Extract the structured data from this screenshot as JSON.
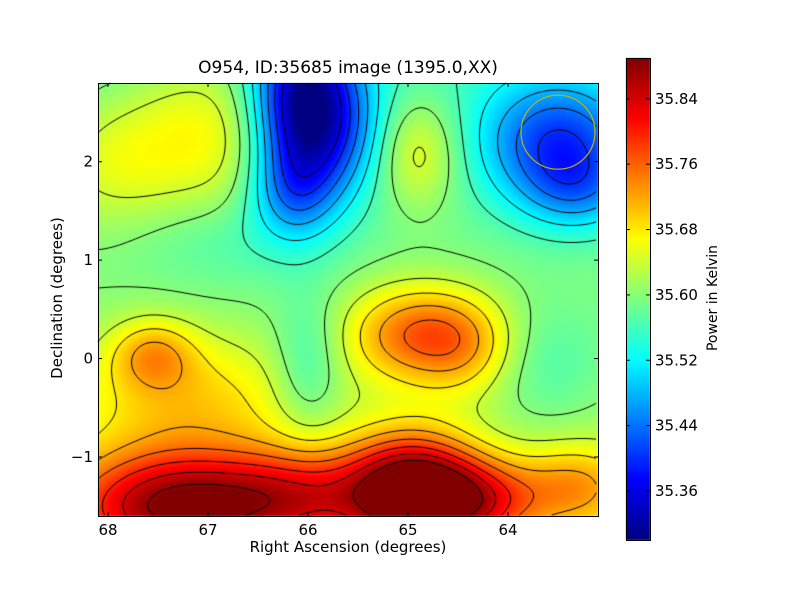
{
  "chart_data": {
    "type": "heatmap",
    "title": "O954, ID:35685 image (1395.0,XX)",
    "xlabel": "Right Ascension (degrees)",
    "ylabel": "Declination (degrees)",
    "colorbar_label": "Power in Kelvin",
    "xlim": [
      68.1,
      63.1
    ],
    "ylim": [
      -1.6,
      2.8
    ],
    "xticks": [
      68,
      67,
      66,
      65,
      64
    ],
    "xtick_labels": [
      "68",
      "67",
      "66",
      "65",
      "64"
    ],
    "yticks": [
      -1,
      0,
      1,
      2
    ],
    "ytick_labels": [
      "−1",
      "0",
      "1",
      "2"
    ],
    "colorbar_range": [
      35.3,
      35.89
    ],
    "colorbar_ticks": [
      35.36,
      35.44,
      35.52,
      35.6,
      35.68,
      35.76,
      35.84
    ],
    "colorbar_tick_labels": [
      "35.36",
      "35.44",
      "35.52",
      "35.60",
      "35.68",
      "35.76",
      "35.84"
    ],
    "colormap": "jet",
    "contour_color": "#000000",
    "beam_circle": {
      "ra": 63.5,
      "dec": 2.3,
      "radius_deg": 0.37,
      "color": "#c8b400"
    },
    "field": {
      "base": 35.6,
      "components": [
        {
          "ra": 66.05,
          "dec": 2.6,
          "sra": 0.35,
          "sdec": 0.6,
          "amp": -0.27
        },
        {
          "ra": 66.15,
          "dec": 1.7,
          "sra": 0.3,
          "sdec": 0.35,
          "amp": -0.1
        },
        {
          "ra": 65.65,
          "dec": 2.3,
          "sra": 0.35,
          "sdec": 0.5,
          "amp": -0.08
        },
        {
          "ra": 63.5,
          "dec": 2.2,
          "sra": 0.55,
          "sdec": 0.45,
          "amp": -0.17
        },
        {
          "ra": 63.3,
          "dec": 1.7,
          "sra": 0.4,
          "sdec": 0.3,
          "amp": -0.08
        },
        {
          "ra": 64.9,
          "dec": 2.1,
          "sra": 0.3,
          "sdec": 0.4,
          "amp": 0.08
        },
        {
          "ra": 67.0,
          "dec": 2.3,
          "sra": 0.6,
          "sdec": 0.6,
          "amp": 0.09
        },
        {
          "ra": 68.0,
          "dec": 2.0,
          "sra": 0.5,
          "sdec": 0.5,
          "amp": 0.06
        },
        {
          "ra": 66.8,
          "dec": 1.2,
          "sra": 0.7,
          "sdec": 0.35,
          "amp": -0.03
        },
        {
          "ra": 64.9,
          "dec": 0.25,
          "sra": 0.5,
          "sdec": 0.35,
          "amp": 0.15
        },
        {
          "ra": 64.4,
          "dec": 0.1,
          "sra": 0.35,
          "sdec": 0.35,
          "amp": 0.06
        },
        {
          "ra": 67.55,
          "dec": 0.05,
          "sra": 0.3,
          "sdec": 0.25,
          "amp": 0.09
        },
        {
          "ra": 67.2,
          "dec": -0.4,
          "sra": 0.8,
          "sdec": 0.45,
          "amp": 0.08
        },
        {
          "ra": 66.0,
          "dec": -0.1,
          "sra": 0.25,
          "sdec": 0.5,
          "amp": -0.06
        },
        {
          "ra": 63.6,
          "dec": -0.1,
          "sra": 0.45,
          "sdec": 0.45,
          "amp": -0.04
        },
        {
          "ra": 67.3,
          "dec": -1.5,
          "sra": 0.8,
          "sdec": 0.4,
          "amp": 0.26
        },
        {
          "ra": 66.0,
          "dec": -1.4,
          "sra": 0.6,
          "sdec": 0.35,
          "amp": 0.14
        },
        {
          "ra": 64.95,
          "dec": -1.35,
          "sra": 0.45,
          "sdec": 0.4,
          "amp": 0.29
        },
        {
          "ra": 64.3,
          "dec": -1.45,
          "sra": 0.45,
          "sdec": 0.3,
          "amp": 0.16
        },
        {
          "ra": 63.3,
          "dec": -1.3,
          "sra": 0.4,
          "sdec": 0.3,
          "amp": 0.1
        }
      ],
      "ramp_per_degree_south": 0.05
    }
  }
}
